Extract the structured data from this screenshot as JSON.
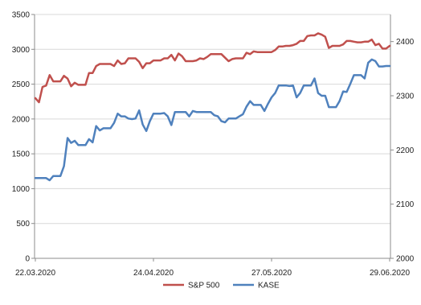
{
  "chart_data": {
    "type": "line",
    "title": "",
    "xlabel": "",
    "ylabel": "",
    "grid": true,
    "legend_position": "bottom",
    "x_tick_labels": [
      "22.03.2020",
      "24.04.2020",
      "27.05.2020",
      "29.06.2020"
    ],
    "x_tick_index": [
      0,
      33,
      66,
      99
    ],
    "y_left": {
      "lim": [
        0,
        3500
      ],
      "ticks": [
        0,
        500,
        1000,
        1500,
        2000,
        2500,
        3000,
        3500
      ]
    },
    "y_right": {
      "lim": [
        2000,
        2450
      ],
      "ticks": [
        2000,
        2100,
        2200,
        2300,
        2400
      ]
    },
    "series": [
      {
        "name": "S&P 500",
        "axis": "left",
        "color": "#c0504d",
        "values": [
          2300,
          2240,
          2460,
          2480,
          2630,
          2540,
          2540,
          2540,
          2620,
          2580,
          2470,
          2520,
          2490,
          2490,
          2490,
          2660,
          2660,
          2760,
          2790,
          2790,
          2790,
          2790,
          2760,
          2840,
          2790,
          2800,
          2870,
          2870,
          2870,
          2820,
          2730,
          2800,
          2800,
          2840,
          2840,
          2840,
          2870,
          2870,
          2920,
          2840,
          2940,
          2900,
          2830,
          2830,
          2830,
          2840,
          2870,
          2860,
          2890,
          2930,
          2930,
          2930,
          2930,
          2880,
          2830,
          2860,
          2870,
          2870,
          2870,
          2950,
          2930,
          2970,
          2960,
          2960,
          2960,
          2960,
          2960,
          2990,
          3040,
          3040,
          3050,
          3050,
          3060,
          3080,
          3120,
          3120,
          3190,
          3200,
          3200,
          3230,
          3210,
          3180,
          3020,
          3050,
          3050,
          3050,
          3070,
          3120,
          3120,
          3110,
          3100,
          3100,
          3110,
          3110,
          3140,
          3060,
          3080,
          3010,
          3010,
          3050
        ]
      },
      {
        "name": "KASE",
        "axis": "right",
        "color": "#4f81bd",
        "values": [
          2148,
          2148,
          2148,
          2148,
          2144,
          2152,
          2152,
          2152,
          2170,
          2222,
          2213,
          2217,
          2209,
          2209,
          2209,
          2220,
          2214,
          2244,
          2236,
          2240,
          2240,
          2240,
          2250,
          2267,
          2262,
          2262,
          2258,
          2257,
          2258,
          2273,
          2247,
          2235,
          2253,
          2267,
          2267,
          2267,
          2268,
          2262,
          2246,
          2270,
          2270,
          2270,
          2270,
          2262,
          2272,
          2270,
          2270,
          2270,
          2270,
          2270,
          2264,
          2262,
          2253,
          2251,
          2258,
          2258,
          2258,
          2262,
          2266,
          2280,
          2290,
          2283,
          2283,
          2283,
          2272,
          2285,
          2297,
          2305,
          2319,
          2319,
          2319,
          2318,
          2319,
          2297,
          2305,
          2319,
          2319,
          2319,
          2332,
          2305,
          2300,
          2300,
          2279,
          2279,
          2279,
          2290,
          2308,
          2307,
          2322,
          2338,
          2338,
          2338,
          2332,
          2361,
          2367,
          2364,
          2354,
          2354,
          2355,
          2355
        ]
      }
    ]
  }
}
